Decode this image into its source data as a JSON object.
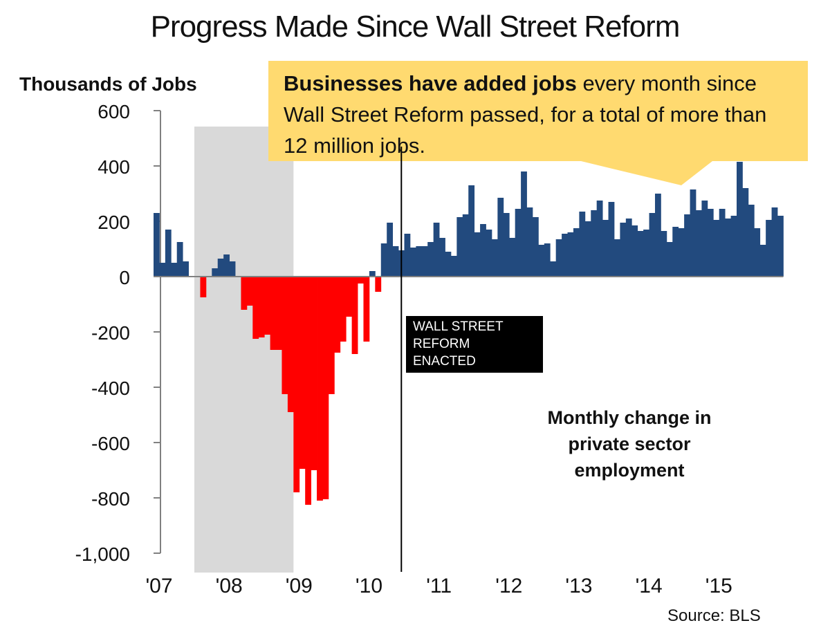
{
  "chart_data": {
    "type": "bar",
    "title": "Progress Made Since Wall Street Reform",
    "ylabel": "Thousands of Jobs",
    "xlabel": "",
    "ylim": [
      -1000,
      600
    ],
    "y_ticks": [
      600,
      400,
      200,
      0,
      -200,
      -400,
      -600,
      -800,
      -1000
    ],
    "y_tick_labels": [
      "600",
      "400",
      "200",
      "0",
      "-200",
      "-400",
      "-600",
      "-800",
      "-1,000"
    ],
    "x_start": "2007-01",
    "x_tick_labels": [
      "'07",
      "'08",
      "'09",
      "'10",
      "'11",
      "'12",
      "'13",
      "'14",
      "'15"
    ],
    "recession_shading": {
      "start_index": 7,
      "end_index": 24
    },
    "reform_line_index": 42.5,
    "series": [
      {
        "name": "Monthly change in private sector employment",
        "values": [
          230,
          50,
          170,
          50,
          125,
          55,
          0,
          0,
          -75,
          0,
          30,
          65,
          80,
          55,
          0,
          -120,
          -105,
          -225,
          -220,
          -210,
          -265,
          -265,
          -425,
          -490,
          -780,
          -695,
          -825,
          -700,
          -810,
          -805,
          -425,
          -275,
          -235,
          -145,
          -280,
          -25,
          -235,
          20,
          -55,
          120,
          195,
          110,
          95,
          155,
          105,
          110,
          110,
          125,
          195,
          140,
          90,
          75,
          215,
          225,
          330,
          160,
          190,
          170,
          135,
          285,
          230,
          140,
          245,
          380,
          250,
          215,
          115,
          120,
          55,
          135,
          155,
          160,
          175,
          235,
          200,
          240,
          275,
          205,
          270,
          135,
          195,
          210,
          185,
          165,
          170,
          230,
          300,
          165,
          125,
          180,
          175,
          225,
          315,
          240,
          275,
          245,
          205,
          245,
          210,
          220,
          415,
          320,
          260,
          175,
          115,
          205,
          250,
          220
        ]
      }
    ],
    "colors": {
      "positive": "#224a7e",
      "negative": "#ff0000",
      "shading": "#d9d9d9",
      "axis": "#808080",
      "callout": "#ffda70"
    }
  },
  "callout": {
    "bold_text": "Businesses have added jobs",
    "rest_text": " every month since Wall Street Reform passed, for a total of more than 12 million jobs."
  },
  "annotations": {
    "enacted_line1": "WALL STREET",
    "enacted_line2": "REFORM ENACTED",
    "series_line1": "Monthly change in",
    "series_line2": "private sector",
    "series_line3": "employment"
  },
  "source": "Source: BLS"
}
